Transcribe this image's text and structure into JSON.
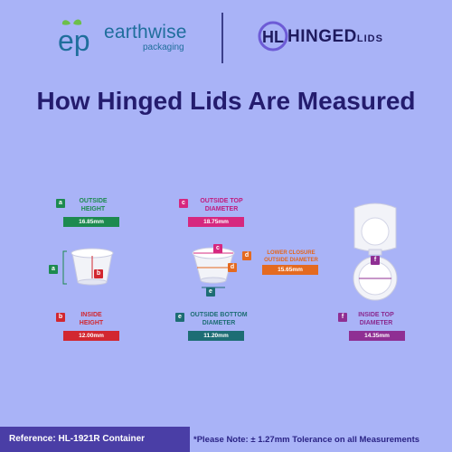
{
  "header": {
    "brand_name": "earthwise",
    "brand_sub": "packaging",
    "partner_main": "HINGED",
    "partner_small": "LIDS"
  },
  "title": "How Hinged Lids Are Measured",
  "measurements": {
    "a": {
      "letter": "a",
      "label_line1": "OUTSIDE",
      "label_line2": "HEIGHT",
      "value": "16.85mm"
    },
    "c": {
      "letter": "c",
      "label_line1": "OUTSIDE TOP",
      "label_line2": "DIAMETER",
      "value": "18.75mm"
    },
    "d": {
      "letter": "d",
      "label_line1": "LOWER CLOSURE",
      "label_line2": "OUTSIDE DIAMETER",
      "value": "15.65mm"
    },
    "b": {
      "letter": "b",
      "label_line1": "INSIDE",
      "label_line2": "HEIGHT",
      "value": "12.00mm"
    },
    "e": {
      "letter": "e",
      "label_line1": "OUTSIDE BOTTOM",
      "label_line2": "DIAMETER",
      "value": "11.20mm"
    },
    "f": {
      "letter": "f",
      "label_line1": "INSIDE TOP",
      "label_line2": "DIAMETER",
      "value": "14.35mm"
    }
  },
  "footer": {
    "reference": "Reference: HL-1921R Container",
    "note": "*Please Note: ± 1.27mm Tolerance on all Measurements"
  },
  "colors": {
    "background": "#a9b3f7",
    "a": "#1d8a4f",
    "b": "#d22730",
    "c": "#d6287f",
    "d": "#e46a20",
    "e": "#1d6d74",
    "f": "#8f2f93"
  }
}
